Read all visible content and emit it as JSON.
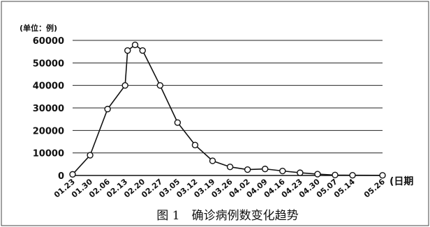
{
  "chart_data": {
    "type": "line",
    "unit_label": "(单位：例)",
    "xlabel": "(日期",
    "caption": "图 1　确诊病例数变化趋势",
    "ylim": [
      0,
      60000
    ],
    "y_ticks": [
      "0",
      "10000",
      "20000",
      "30000",
      "40000",
      "50000",
      "60000"
    ],
    "x_tick_labels": [
      "01.23",
      "01.30",
      "02.06",
      "02.13",
      "02.20",
      "02.27",
      "03.05",
      "03.12",
      "03.19",
      "03.26",
      "04.02",
      "04.09",
      "04.16",
      "04.23",
      "04.30",
      "05.07",
      "05.14",
      "05.26"
    ],
    "grid": true,
    "series": [
      {
        "points": [
          {
            "x": "01.23",
            "y": 500
          },
          {
            "x": "01.30",
            "y": 9000
          },
          {
            "x": "02.06",
            "y": 29500
          },
          {
            "x": "02.13",
            "y": 40000
          },
          {
            "x": "02.14",
            "y": 55500
          },
          {
            "x": "02.17",
            "y": 58000
          },
          {
            "x": "02.20",
            "y": 55500
          },
          {
            "x": "02.27",
            "y": 40000
          },
          {
            "x": "03.05",
            "y": 23500
          },
          {
            "x": "03.12",
            "y": 13500
          },
          {
            "x": "03.19",
            "y": 6500
          },
          {
            "x": "03.26",
            "y": 3800
          },
          {
            "x": "04.02",
            "y": 2600
          },
          {
            "x": "04.09",
            "y": 2900
          },
          {
            "x": "04.16",
            "y": 2000
          },
          {
            "x": "04.23",
            "y": 1200
          },
          {
            "x": "04.30",
            "y": 600
          },
          {
            "x": "05.07",
            "y": 200
          },
          {
            "x": "05.14",
            "y": 100
          },
          {
            "x": "05.26",
            "y": 50
          }
        ]
      }
    ]
  }
}
